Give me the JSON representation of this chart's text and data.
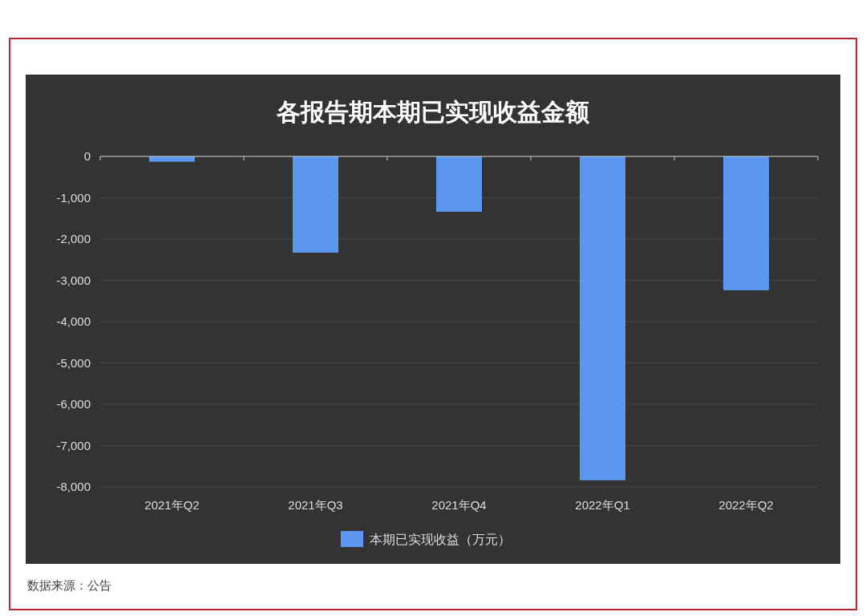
{
  "chart_data": {
    "type": "bar",
    "title": "各报告期本期已实现收益金额",
    "categories": [
      "2021年Q2",
      "2021年Q3",
      "2021年Q4",
      "2022年Q1",
      "2022年Q2"
    ],
    "series": [
      {
        "name": "本期已实现收益（万元）",
        "color": "#5b96f0",
        "values": [
          -130,
          -2330,
          -1340,
          -7840,
          -3240
        ]
      }
    ],
    "ylim": [
      -8000,
      0
    ],
    "yticks": [
      {
        "value": -8000,
        "label": "-8,000"
      },
      {
        "value": -7000,
        "label": "-7,000"
      },
      {
        "value": -6000,
        "label": "-6,000"
      },
      {
        "value": -5000,
        "label": "-5,000"
      },
      {
        "value": -4000,
        "label": "-4,000"
      },
      {
        "value": -3000,
        "label": "-3,000"
      },
      {
        "value": -2000,
        "label": "-2,000"
      },
      {
        "value": -1000,
        "label": "-1,000"
      },
      0
    ],
    "grid": "y",
    "legend": "bottom",
    "annotations": [
      "数据来源：公告"
    ]
  }
}
